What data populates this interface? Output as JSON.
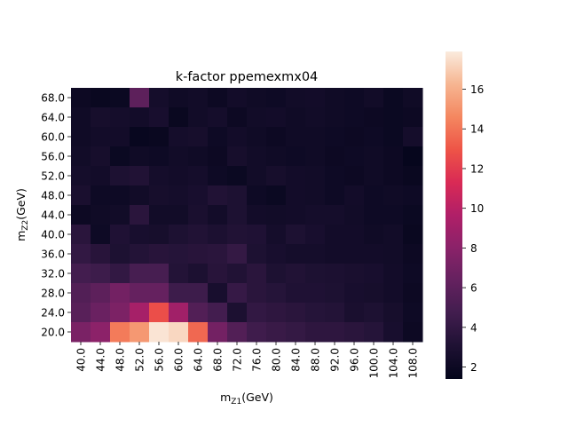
{
  "chart_data": {
    "type": "heatmap",
    "title": "k-factor ppemexmx04",
    "xlabel": "m_{Z1}(GeV)",
    "ylabel": "m_{Z2}(GeV)",
    "x": [
      "40.0",
      "44.0",
      "48.0",
      "52.0",
      "56.0",
      "60.0",
      "64.0",
      "68.0",
      "72.0",
      "76.0",
      "80.0",
      "84.0",
      "88.0",
      "92.0",
      "96.0",
      "100.0",
      "104.0",
      "108.0"
    ],
    "y": [
      "68.0",
      "64.0",
      "60.0",
      "56.0",
      "52.0",
      "48.0",
      "44.0",
      "40.0",
      "36.0",
      "32.0",
      "28.0",
      "24.0",
      "20.0"
    ],
    "values": [
      [
        2.0,
        1.8,
        1.9,
        6.0,
        2.5,
        2.2,
        2.3,
        2.0,
        2.4,
        2.2,
        2.1,
        2.3,
        2.4,
        2.2,
        2.1,
        2.3,
        1.9,
        2.2
      ],
      [
        2.2,
        2.6,
        2.5,
        2.4,
        2.7,
        1.8,
        2.3,
        2.5,
        2.0,
        2.3,
        2.4,
        2.2,
        2.3,
        2.2,
        2.1,
        2.0,
        1.9,
        2.0
      ],
      [
        2.2,
        2.4,
        2.4,
        1.7,
        1.8,
        2.5,
        2.6,
        2.1,
        2.4,
        2.2,
        2.0,
        2.2,
        2.2,
        2.1,
        2.0,
        2.1,
        1.9,
        2.5
      ],
      [
        2.3,
        2.6,
        1.9,
        2.2,
        2.1,
        2.3,
        2.2,
        2.0,
        2.6,
        2.3,
        2.2,
        2.1,
        2.2,
        2.0,
        2.1,
        2.2,
        2.0,
        1.6
      ],
      [
        2.5,
        2.4,
        3.0,
        3.2,
        2.5,
        2.4,
        2.5,
        2.1,
        1.9,
        2.3,
        2.6,
        2.4,
        2.3,
        2.1,
        2.0,
        2.2,
        2.0,
        1.8
      ],
      [
        2.8,
        2.1,
        2.1,
        2.3,
        2.6,
        2.5,
        2.7,
        3.2,
        3.0,
        2.1,
        1.9,
        2.4,
        2.3,
        2.1,
        2.4,
        2.1,
        2.2,
        2.1
      ],
      [
        2.0,
        2.2,
        2.3,
        3.6,
        2.3,
        2.3,
        2.8,
        2.4,
        3.0,
        2.4,
        2.3,
        2.4,
        2.5,
        2.5,
        2.3,
        2.1,
        2.1,
        1.9
      ],
      [
        3.6,
        2.1,
        3.1,
        2.7,
        2.6,
        3.0,
        3.2,
        2.9,
        3.2,
        3.1,
        2.5,
        3.0,
        2.7,
        2.4,
        2.4,
        2.2,
        2.3,
        1.8
      ],
      [
        4.0,
        3.5,
        3.0,
        3.3,
        3.5,
        3.4,
        3.5,
        3.6,
        4.1,
        3.0,
        2.7,
        2.5,
        2.5,
        2.4,
        2.4,
        2.4,
        2.3,
        2.0
      ],
      [
        4.8,
        4.5,
        4.0,
        5.0,
        5.0,
        3.3,
        2.9,
        3.5,
        3.2,
        3.6,
        3.0,
        3.2,
        3.0,
        2.9,
        2.8,
        2.7,
        2.4,
        2.1
      ],
      [
        5.5,
        6.0,
        7.0,
        6.4,
        6.4,
        4.5,
        4.5,
        2.7,
        4.2,
        3.6,
        3.4,
        3.1,
        3.1,
        3.0,
        2.7,
        2.6,
        2.4,
        2.0
      ],
      [
        5.8,
        6.6,
        7.4,
        9.2,
        12.7,
        9.0,
        5.5,
        4.8,
        2.9,
        4.0,
        3.8,
        3.6,
        3.4,
        3.3,
        2.8,
        3.0,
        2.6,
        2.1
      ],
      [
        7.3,
        8.1,
        14.2,
        15.2,
        17.7,
        17.3,
        13.6,
        7.0,
        5.5,
        4.6,
        4.3,
        4.1,
        3.8,
        3.8,
        3.6,
        3.4,
        2.7,
        2.0
      ]
    ],
    "zlim": [
      1.4,
      17.9
    ],
    "colorbar_ticks": [
      2,
      4,
      6,
      8,
      10,
      12,
      14,
      16
    ],
    "colormap": "rocket"
  }
}
